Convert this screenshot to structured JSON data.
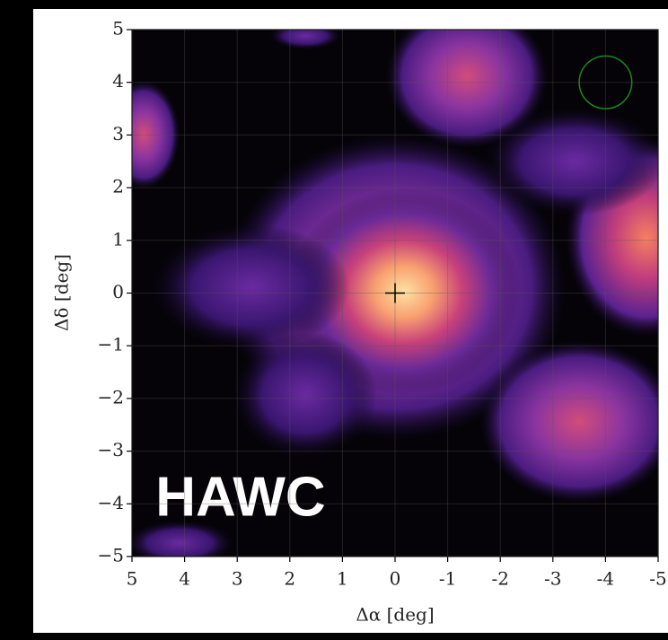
{
  "chart_data": {
    "type": "skymap",
    "annotation": "HAWC",
    "x_label": "Δα [deg]",
    "y_label": "Δδ [deg]",
    "xlim": [
      5,
      -5
    ],
    "ylim": [
      -5,
      5
    ],
    "xticks": [
      5,
      4,
      3,
      2,
      1,
      0,
      {
        "value": -1,
        "label": "-1"
      },
      {
        "value": -2,
        "label": "-2"
      },
      {
        "value": -3,
        "label": "-3"
      },
      {
        "value": -4,
        "label": "-4"
      },
      {
        "value": -5,
        "label": "-5"
      }
    ],
    "yticks": [
      {
        "value": -5,
        "label": "−5"
      },
      {
        "value": -4,
        "label": "−4"
      },
      {
        "value": -3,
        "label": "−3"
      },
      {
        "value": -2,
        "label": "−2"
      },
      {
        "value": -1,
        "label": "−1"
      },
      0,
      1,
      2,
      3,
      4,
      5
    ],
    "grid": true,
    "marker": {
      "x": 0,
      "y": 0
    },
    "psf_circle": {
      "x": -4,
      "y": 4,
      "radius": 0.5,
      "color": "#1a8a1a"
    }
  }
}
